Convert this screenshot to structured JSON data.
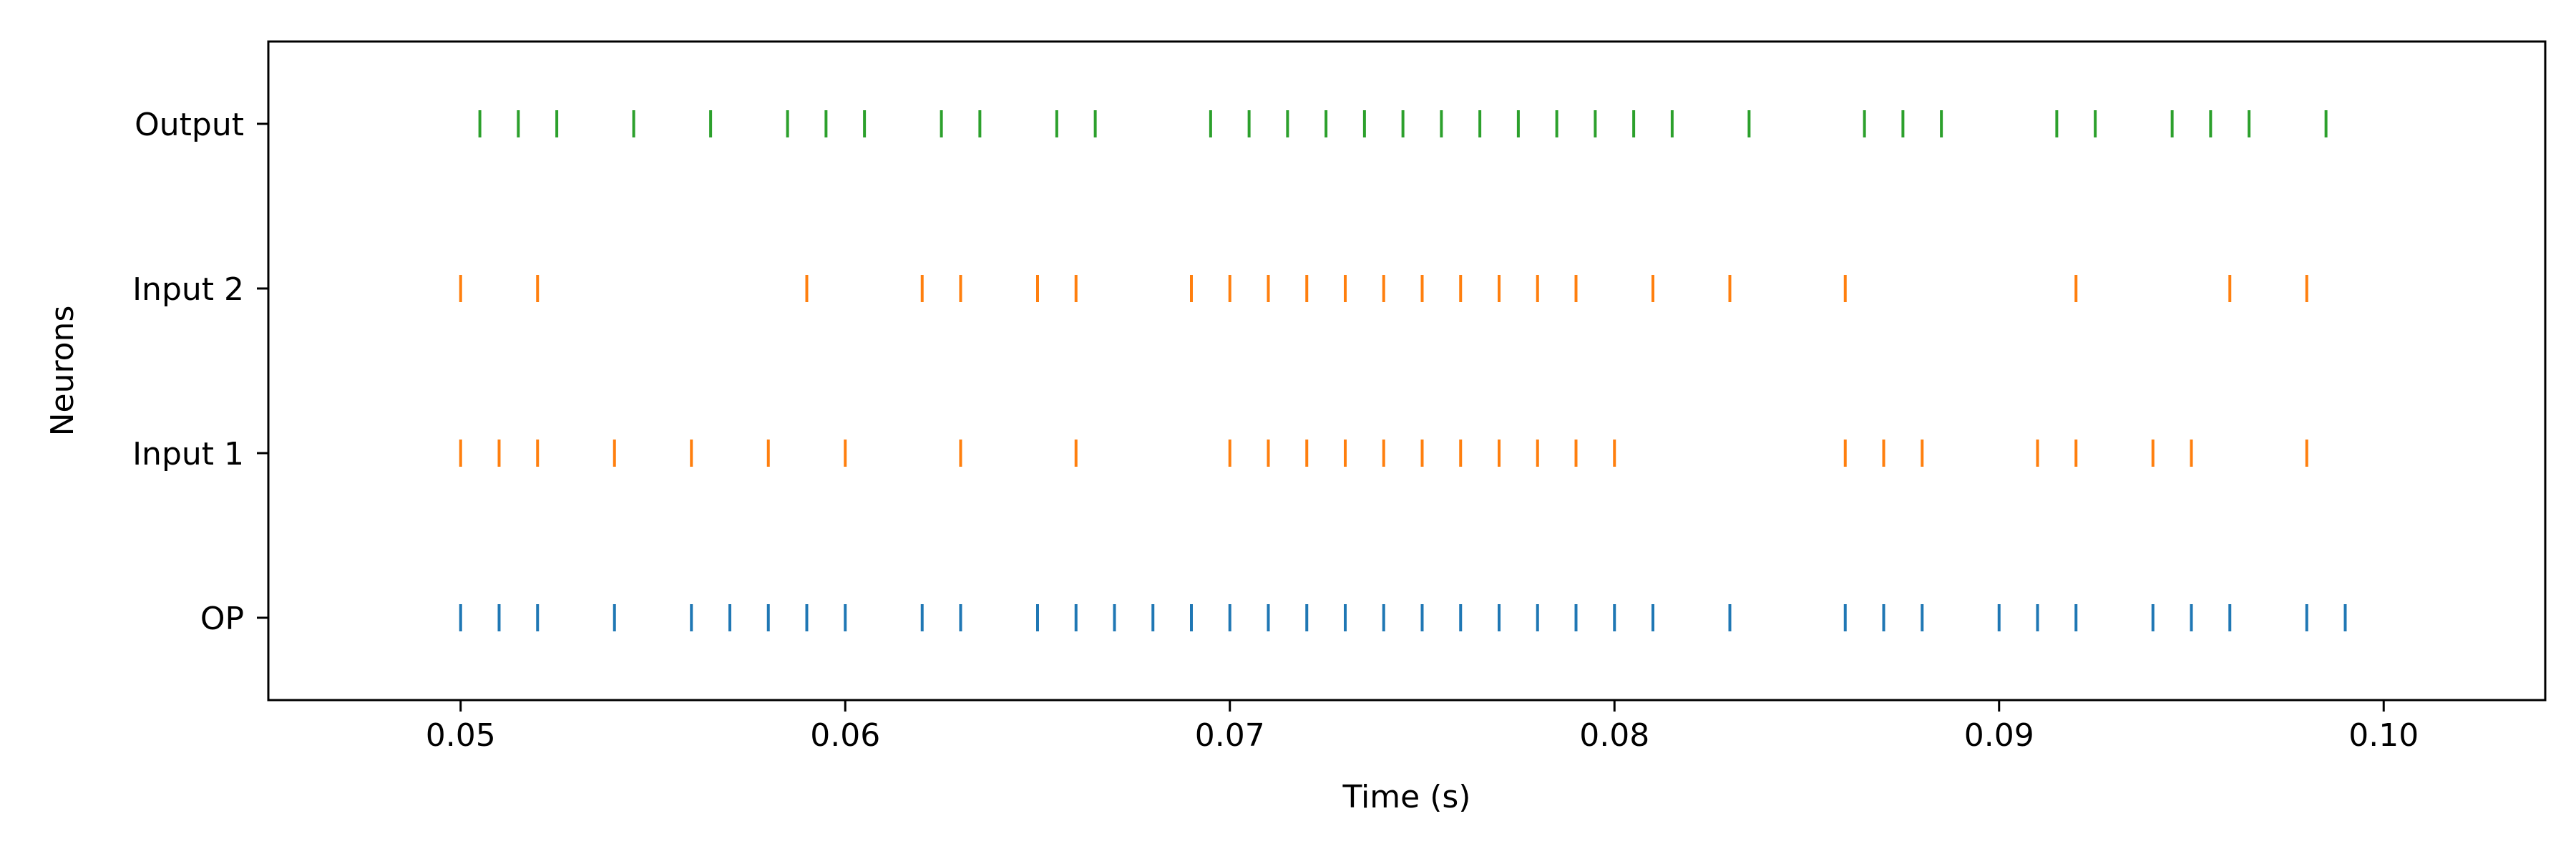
{
  "chart_data": {
    "type": "scatter",
    "style": "eventplot",
    "title": "",
    "xlabel": "Time (s)",
    "ylabel": "Neurons",
    "xlim": [
      0.045,
      0.1042
    ],
    "ylim": [
      -0.5,
      3.5
    ],
    "x_ticks": [
      0.05,
      0.06,
      0.07,
      0.08,
      0.09,
      0.1
    ],
    "x_tick_labels": [
      "0.05",
      "0.06",
      "0.07",
      "0.08",
      "0.09",
      "0.10"
    ],
    "categories": [
      "OP",
      "Input 1",
      "Input 2",
      "Output"
    ],
    "grid": false,
    "legend": "none",
    "series": [
      {
        "name": "OP",
        "color": "#1f77b4",
        "values": [
          0.05,
          0.051,
          0.052,
          0.054,
          0.056,
          0.057,
          0.058,
          0.059,
          0.06,
          0.062,
          0.063,
          0.065,
          0.066,
          0.067,
          0.068,
          0.069,
          0.07,
          0.071,
          0.072,
          0.073,
          0.074,
          0.075,
          0.076,
          0.077,
          0.078,
          0.079,
          0.08,
          0.081,
          0.083,
          0.086,
          0.087,
          0.088,
          0.09,
          0.091,
          0.092,
          0.094,
          0.095,
          0.096,
          0.098,
          0.099
        ]
      },
      {
        "name": "Input 1",
        "color": "#ff7f0e",
        "values": [
          0.05,
          0.051,
          0.052,
          0.054,
          0.056,
          0.058,
          0.06,
          0.063,
          0.066,
          0.07,
          0.071,
          0.072,
          0.073,
          0.074,
          0.075,
          0.076,
          0.077,
          0.078,
          0.079,
          0.08,
          0.086,
          0.087,
          0.088,
          0.091,
          0.092,
          0.094,
          0.095,
          0.098
        ]
      },
      {
        "name": "Input 2",
        "color": "#ff7f0e",
        "values": [
          0.05,
          0.052,
          0.059,
          0.062,
          0.063,
          0.065,
          0.066,
          0.069,
          0.07,
          0.071,
          0.072,
          0.073,
          0.074,
          0.075,
          0.076,
          0.077,
          0.078,
          0.079,
          0.081,
          0.083,
          0.086,
          0.092,
          0.096,
          0.098
        ]
      },
      {
        "name": "Output",
        "color": "#2ca02c",
        "values": [
          0.0505,
          0.0515,
          0.0525,
          0.0545,
          0.0565,
          0.0585,
          0.0595,
          0.0605,
          0.0625,
          0.0635,
          0.0655,
          0.0665,
          0.0695,
          0.0705,
          0.0715,
          0.0725,
          0.0735,
          0.0745,
          0.0755,
          0.0765,
          0.0775,
          0.0785,
          0.0795,
          0.0805,
          0.0815,
          0.0835,
          0.0865,
          0.0875,
          0.0885,
          0.0915,
          0.0925,
          0.0945,
          0.0955,
          0.0965,
          0.0985
        ]
      }
    ]
  }
}
